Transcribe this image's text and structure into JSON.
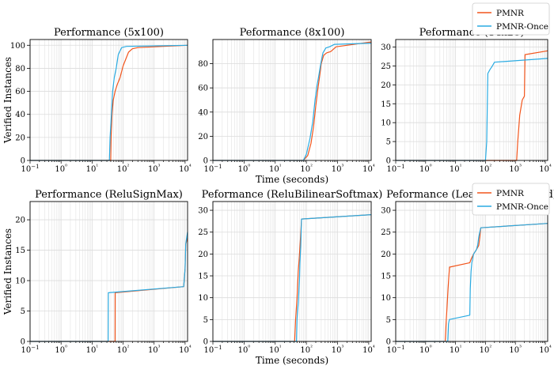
{
  "colors": {
    "pmnr": "#f2551c",
    "pmnr_once": "#2aabe2",
    "grid": "#dcdcdc"
  },
  "legend": {
    "placement": "top-right (above last panel of each row)",
    "entries": [
      "PMNR",
      "PMNR-Once"
    ]
  },
  "chart_data": [
    {
      "type": "line",
      "title": "Performance (5x100)",
      "xlabel": "",
      "ylabel": "Verified Instances",
      "xscale": "log",
      "xlim": [
        0.1,
        12000
      ],
      "ylim": [
        0,
        105
      ],
      "xticks": [
        0.1,
        1,
        10,
        100,
        1000,
        10000
      ],
      "xtick_labels": [
        "10−1",
        "10⁰",
        "10¹",
        "10²",
        "10³",
        "10⁴"
      ],
      "yticks": [
        0,
        20,
        40,
        60,
        80,
        100
      ],
      "grid": true,
      "series": [
        {
          "name": "PMNR",
          "color": "#f2551c",
          "x": [
            0.1,
            40,
            41,
            44,
            48,
            55,
            65,
            80,
            100,
            150,
            200,
            300,
            12000
          ],
          "y": [
            0,
            0,
            20,
            40,
            52,
            60,
            66,
            72,
            82,
            94,
            97,
            98,
            100
          ]
        },
        {
          "name": "PMNR-Once",
          "color": "#2aabe2",
          "x": [
            0.1,
            36,
            38,
            42,
            46,
            52,
            60,
            70,
            90,
            130,
            12000
          ],
          "y": [
            0,
            0,
            20,
            40,
            60,
            72,
            80,
            92,
            98,
            99,
            100
          ]
        }
      ]
    },
    {
      "type": "line",
      "title": "Peformance (8x100)",
      "xlabel": "Time (seconds)",
      "ylabel": "",
      "xscale": "log",
      "xlim": [
        0.1,
        12000
      ],
      "ylim": [
        0,
        100
      ],
      "xticks": [
        0.1,
        1,
        10,
        100,
        1000,
        10000
      ],
      "xtick_labels": [
        "10−1",
        "10⁰",
        "10¹",
        "10²",
        "10³",
        "10⁴"
      ],
      "yticks": [
        0,
        20,
        40,
        60,
        80
      ],
      "grid": true,
      "series": [
        {
          "name": "PMNR",
          "color": "#f2551c",
          "x": [
            0.1,
            80,
            110,
            140,
            170,
            200,
            230,
            260,
            300,
            360,
            450,
            600,
            900,
            12000
          ],
          "y": [
            0,
            0,
            4,
            14,
            28,
            45,
            58,
            68,
            80,
            87,
            89,
            90,
            94,
            98
          ]
        },
        {
          "name": "PMNR-Once",
          "color": "#2aabe2",
          "x": [
            0.1,
            80,
            100,
            130,
            160,
            190,
            220,
            250,
            290,
            340,
            420,
            550,
            800,
            12000
          ],
          "y": [
            0,
            0,
            5,
            18,
            32,
            50,
            62,
            70,
            80,
            89,
            93,
            94,
            96,
            97
          ]
        }
      ]
    },
    {
      "type": "line",
      "title": "Peformance (14x28)",
      "xlabel": "",
      "ylabel": "",
      "xscale": "log",
      "xlim": [
        0.1,
        12000
      ],
      "ylim": [
        0,
        32
      ],
      "xticks": [
        0.1,
        1,
        10,
        100,
        1000,
        10000
      ],
      "xtick_labels": [
        "10−1",
        "10⁰",
        "10¹",
        "10²",
        "10³",
        "10⁴"
      ],
      "yticks": [
        0,
        5,
        10,
        15,
        20,
        25,
        30
      ],
      "grid": true,
      "series": [
        {
          "name": "PMNR",
          "color": "#f2551c",
          "x": [
            0.1,
            1100,
            1200,
            1400,
            1700,
            2000,
            2100,
            12000
          ],
          "y": [
            0,
            0,
            5,
            12,
            16,
            17,
            28,
            29
          ]
        },
        {
          "name": "PMNR-Once",
          "color": "#2aabe2",
          "x": [
            0.1,
            100,
            110,
            120,
            140,
            170,
            200,
            12000
          ],
          "y": [
            0,
            0,
            5,
            23,
            24,
            25,
            26,
            27
          ]
        }
      ]
    },
    {
      "type": "line",
      "title": "Performance (ReluSignMax)",
      "xlabel": "",
      "ylabel": "Verified Instances",
      "xscale": "log",
      "xlim": [
        0.1,
        12000
      ],
      "ylim": [
        0,
        23
      ],
      "xticks": [
        0.1,
        1,
        10,
        100,
        1000,
        10000
      ],
      "xtick_labels": [
        "10−1",
        "10⁰",
        "10¹",
        "10²",
        "10³",
        "10⁴"
      ],
      "yticks": [
        0,
        5,
        10,
        15,
        20
      ],
      "grid": true,
      "series": [
        {
          "name": "PMNR",
          "color": "#f2551c",
          "x": [
            0.1,
            55,
            55.5,
            9000,
            10000,
            10500,
            12000
          ],
          "y": [
            0,
            0,
            8,
            9,
            12,
            16,
            17
          ]
        },
        {
          "name": "PMNR-Once",
          "color": "#2aabe2",
          "x": [
            0.1,
            33,
            33.5,
            9000,
            10000,
            10500,
            12000
          ],
          "y": [
            0,
            0,
            8,
            9,
            12,
            16,
            18
          ]
        }
      ]
    },
    {
      "type": "line",
      "title": "Peformance (ReluBilinearSoftmax)",
      "xlabel": "Time (seconds)",
      "ylabel": "",
      "xscale": "log",
      "xlim": [
        0.1,
        12000
      ],
      "ylim": [
        0,
        32
      ],
      "xticks": [
        0.1,
        1,
        10,
        100,
        1000,
        10000
      ],
      "xtick_labels": [
        "10−1",
        "10⁰",
        "10¹",
        "10²",
        "10³",
        "10⁴"
      ],
      "yticks": [
        0,
        5,
        10,
        15,
        20,
        25,
        30
      ],
      "grid": true,
      "series": [
        {
          "name": "PMNR",
          "color": "#f2551c",
          "x": [
            0.1,
            42,
            45,
            50,
            55,
            60,
            65,
            70,
            12000
          ],
          "y": [
            0,
            0,
            5,
            10,
            16,
            20,
            24,
            28,
            29
          ]
        },
        {
          "name": "PMNR-Once",
          "color": "#2aabe2",
          "x": [
            0.1,
            48,
            50,
            55,
            60,
            62,
            66,
            70,
            12000
          ],
          "y": [
            0,
            0,
            5,
            9,
            14,
            18,
            22,
            28,
            29
          ]
        }
      ]
    },
    {
      "type": "line",
      "title": "Peformance (LeakyReluSigmoid)",
      "xlabel": "",
      "ylabel": "",
      "xscale": "log",
      "xlim": [
        0.1,
        12000
      ],
      "ylim": [
        0,
        32
      ],
      "xticks": [
        0.1,
        1,
        10,
        100,
        1000,
        10000
      ],
      "xtick_labels": [
        "10−1",
        "10⁰",
        "10¹",
        "10²",
        "10³",
        "10⁴"
      ],
      "yticks": [
        0,
        5,
        10,
        15,
        20,
        25,
        30
      ],
      "grid": true,
      "series": [
        {
          "name": "PMNR",
          "color": "#f2551c",
          "x": [
            0.1,
            4.5,
            4.8,
            5.2,
            5.6,
            6.0,
            6.3,
            30,
            34,
            40,
            50,
            60,
            65,
            70,
            12000
          ],
          "y": [
            0,
            0,
            4,
            8,
            12,
            15,
            17,
            18,
            19,
            20,
            21,
            22,
            24,
            26,
            27
          ]
        },
        {
          "name": "PMNR-Once",
          "color": "#2aabe2",
          "x": [
            0.1,
            5.5,
            5.8,
            6.2,
            30,
            31,
            33,
            35,
            40,
            50,
            55,
            60,
            70,
            12000
          ],
          "y": [
            0,
            0,
            4,
            5,
            6,
            12,
            16,
            18,
            20,
            21,
            22,
            24,
            26,
            27
          ]
        }
      ]
    }
  ]
}
